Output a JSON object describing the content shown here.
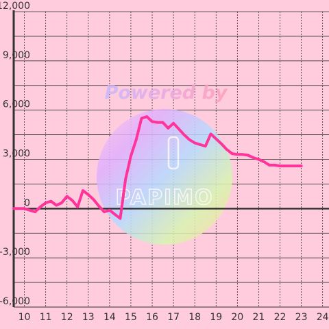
{
  "chart_data": {
    "type": "line",
    "title": "",
    "xlabel": "",
    "ylabel": "",
    "xlim": [
      9.5,
      24.3
    ],
    "ylim": [
      -6000,
      12000
    ],
    "x_ticks": [
      10,
      11,
      12,
      13,
      14,
      15,
      16,
      17,
      18,
      19,
      20,
      21,
      22,
      23,
      24
    ],
    "x_tick_labels": [
      "10",
      "11",
      "12",
      "13",
      "14",
      "15",
      "16",
      "17",
      "18",
      "19",
      "20",
      "21",
      "22",
      "23",
      "24"
    ],
    "y_ticks": [
      -6000,
      -3000,
      0,
      3000,
      6000,
      9000,
      12000
    ],
    "y_tick_labels": [
      "-6,000",
      "-3,000",
      "0",
      "3,000",
      "6,000",
      "9,000",
      "12,000"
    ],
    "grid": true,
    "zero_line": true,
    "series": [
      {
        "color": "#ff3399",
        "x": [
          9.5,
          10.0,
          10.25,
          10.5,
          10.75,
          11.0,
          11.25,
          11.5,
          11.75,
          12.0,
          12.25,
          12.5,
          12.75,
          13.0,
          13.25,
          13.5,
          13.75,
          14.0,
          14.25,
          14.5,
          14.75,
          15.0,
          15.25,
          15.5,
          15.75,
          16.0,
          16.25,
          16.5,
          16.75,
          17.0,
          17.25,
          17.5,
          17.75,
          18.0,
          18.25,
          18.5,
          18.75,
          19.0,
          19.25,
          19.5,
          19.75,
          20.0,
          20.25,
          20.5,
          20.75,
          21.0,
          21.25,
          21.5,
          21.75,
          22.0,
          22.25,
          22.5,
          22.75,
          23.0
        ],
        "values": [
          0,
          0,
          -100,
          -200,
          100,
          350,
          450,
          200,
          350,
          750,
          500,
          100,
          1100,
          850,
          550,
          150,
          -200,
          -100,
          -350,
          -600,
          1800,
          3200,
          4200,
          5500,
          5600,
          5300,
          5250,
          5250,
          4900,
          5200,
          4850,
          4500,
          4200,
          4000,
          3900,
          3800,
          4550,
          4250,
          3950,
          3600,
          3350,
          3300,
          3300,
          3250,
          3100,
          3000,
          2850,
          2650,
          2650,
          2600,
          2600,
          2600,
          2600,
          2600
        ]
      }
    ]
  },
  "watermark": {
    "text": "Powered by",
    "logo_text": "PAPIMO",
    "colors": [
      "#ff99cc",
      "#cc99ff",
      "#99ccff",
      "#ccff99",
      "#ffcc99"
    ]
  }
}
